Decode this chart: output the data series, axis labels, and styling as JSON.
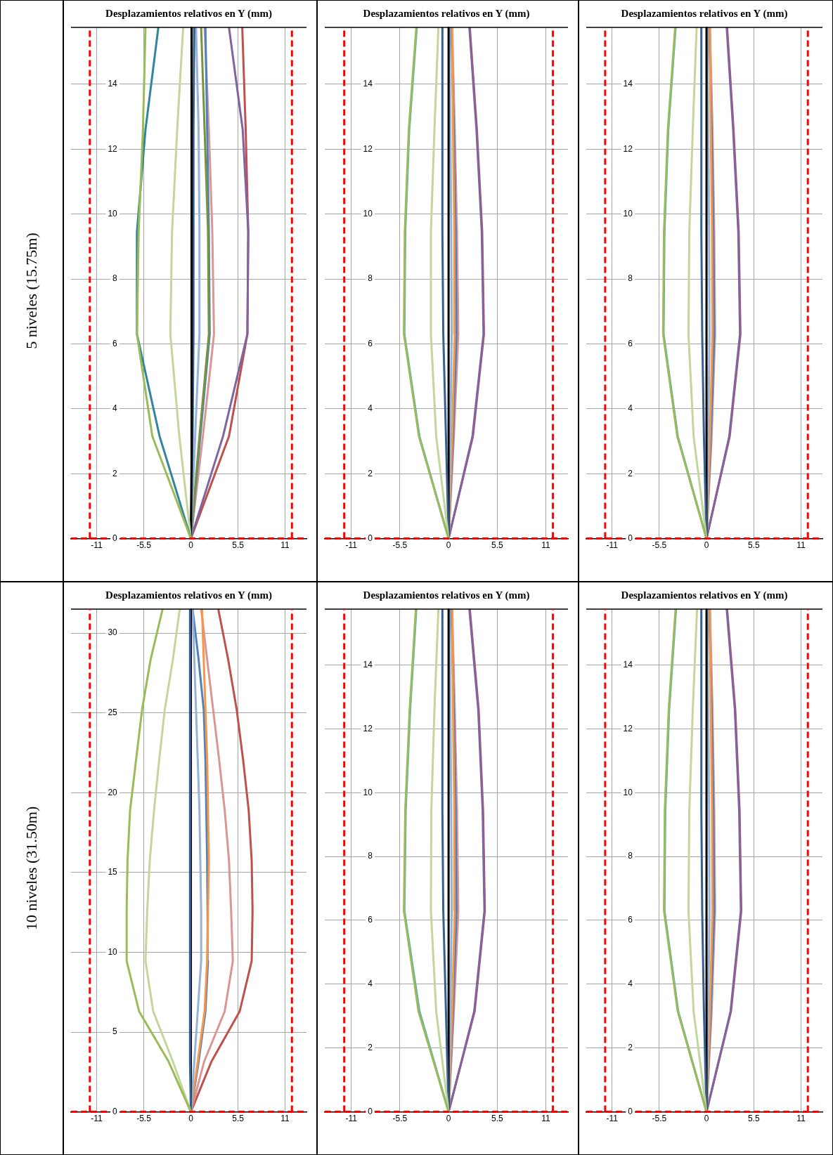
{
  "chart_data": [
    {
      "type": "line",
      "title": "Desplazamientos relativos en Y (mm)",
      "ylabel": "5 niveles (15.75m)",
      "xlim": [
        -14,
        13.5
      ],
      "xticks": [
        -11,
        -5.5,
        0,
        5.5,
        11
      ],
      "ylim": [
        0,
        15.75
      ],
      "yticks": [
        0,
        2,
        4,
        6,
        8,
        10,
        12,
        14
      ],
      "grid": true,
      "marker": "none",
      "series": [
        {
          "color": "#9bbb59",
          "x": [
            0,
            -4.5,
            -6.3,
            -6.1,
            -5.6,
            -5.3
          ],
          "values": [
            0,
            3.15,
            6.3,
            9.45,
            12.6,
            15.75
          ]
        },
        {
          "color": "#31859c",
          "x": [
            0,
            -3.65,
            -6.3,
            -6.3,
            -5.3,
            -3.8
          ],
          "values": [
            0,
            3.15,
            6.3,
            9.45,
            12.6,
            15.75
          ]
        },
        {
          "color": "#c3d69b",
          "x": [
            0,
            -1.35,
            -2.4,
            -2.2,
            -1.6,
            -0.9
          ],
          "values": [
            0,
            3.15,
            6.3,
            9.45,
            12.6,
            15.75
          ]
        },
        {
          "color": "#000000",
          "x": [
            0,
            0.1,
            0.1,
            0.1,
            0.1,
            0.1
          ],
          "values": [
            0,
            3.15,
            6.3,
            9.45,
            12.6,
            15.75
          ]
        },
        {
          "color": "#376092",
          "x": [
            0,
            0.2,
            0.3,
            0.3,
            0.3,
            0.4
          ],
          "values": [
            0,
            3.15,
            6.3,
            9.45,
            12.6,
            15.75
          ]
        },
        {
          "color": "#95b3d7",
          "x": [
            0,
            0.5,
            1.0,
            1.0,
            0.9,
            0.6
          ],
          "values": [
            0,
            3.15,
            6.3,
            9.45,
            12.6,
            15.75
          ]
        },
        {
          "color": "#77933c",
          "x": [
            0,
            1.0,
            2.1,
            2.0,
            1.6,
            1.2
          ],
          "values": [
            0,
            3.15,
            6.3,
            9.45,
            12.6,
            15.75
          ]
        },
        {
          "color": "#4f81bd",
          "x": [
            0,
            1.1,
            2.2,
            2.1,
            1.9,
            1.7
          ],
          "values": [
            0,
            3.15,
            6.3,
            9.45,
            12.6,
            15.75
          ]
        },
        {
          "color": "#d99694",
          "x": [
            0,
            1.4,
            2.7,
            2.5,
            2.1,
            1.6
          ],
          "values": [
            0,
            3.15,
            6.3,
            9.45,
            12.6,
            15.75
          ]
        },
        {
          "color": "#8064a2",
          "x": [
            0,
            3.75,
            6.6,
            6.7,
            6.05,
            4.45
          ],
          "values": [
            0,
            3.15,
            6.3,
            9.45,
            12.6,
            15.75
          ]
        },
        {
          "color": "#c0504d",
          "x": [
            0,
            4.45,
            6.6,
            6.7,
            6.4,
            6.0
          ],
          "values": [
            0,
            3.15,
            6.3,
            9.45,
            12.6,
            15.75
          ]
        }
      ],
      "ref_lines": [
        {
          "axis": "x",
          "value": -11.8,
          "color": "#ff0000",
          "line_style": "dashed"
        },
        {
          "axis": "x",
          "value": 11.8,
          "color": "#ff0000",
          "line_style": "dashed"
        },
        {
          "axis": "y",
          "value": 0,
          "color": "#ff0000",
          "line_style": "dashed"
        }
      ]
    },
    {
      "type": "line",
      "title": "Desplazamientos relativos en Y (mm)",
      "xlim": [
        -14,
        13.5
      ],
      "xticks": [
        -11,
        -5.5,
        0,
        5.5,
        11
      ],
      "ylim": [
        0,
        15.75
      ],
      "yticks": [
        0,
        2,
        4,
        6,
        8,
        10,
        12,
        14
      ],
      "grid": true,
      "marker": "none",
      "series": [
        {
          "color": "#9bbb59",
          "x": [
            0,
            -3.35,
            -5.05,
            -4.95,
            -4.5,
            -3.65
          ],
          "values": [
            0,
            3.15,
            6.3,
            9.45,
            12.6,
            15.75
          ]
        },
        {
          "color": "#4bacc6",
          "x": [
            0,
            -3.3,
            -5.0,
            -4.9,
            -4.45,
            -3.6
          ],
          "values": [
            0,
            3.15,
            6.3,
            9.45,
            12.6,
            15.75
          ]
        },
        {
          "color": "#c3d69b",
          "x": [
            0,
            -1.4,
            -2.0,
            -2.0,
            -1.6,
            -1.15
          ],
          "values": [
            0,
            3.15,
            6.3,
            9.45,
            12.6,
            15.75
          ]
        },
        {
          "color": "#376092",
          "x": [
            0,
            -0.3,
            -0.6,
            -0.7,
            -0.7,
            -0.7
          ],
          "values": [
            0,
            3.15,
            6.3,
            9.45,
            12.6,
            15.75
          ]
        },
        {
          "color": "#000000",
          "x": [
            0,
            0,
            0,
            0,
            0,
            0
          ],
          "values": [
            0,
            3.15,
            6.3,
            9.45,
            12.6,
            15.75
          ]
        },
        {
          "color": "#95b3d7",
          "x": [
            0,
            0.2,
            0.35,
            0.3,
            0.2,
            0.1
          ],
          "values": [
            0,
            3.15,
            6.3,
            9.45,
            12.6,
            15.75
          ]
        },
        {
          "color": "#f79646",
          "x": [
            0,
            0.4,
            0.7,
            0.65,
            0.5,
            0.4
          ],
          "values": [
            0,
            3.15,
            6.3,
            9.45,
            12.6,
            15.75
          ]
        },
        {
          "color": "#4f81bd",
          "x": [
            0,
            0.5,
            0.9,
            0.8,
            0.6,
            0.3
          ],
          "values": [
            0,
            3.15,
            6.3,
            9.45,
            12.6,
            15.75
          ]
        },
        {
          "color": "#d99694",
          "x": [
            0,
            0.6,
            1.1,
            0.95,
            0.7,
            0.4
          ],
          "values": [
            0,
            3.15,
            6.3,
            9.45,
            12.6,
            15.75
          ]
        },
        {
          "color": "#8064a2",
          "x": [
            0,
            2.7,
            3.95,
            3.75,
            3.15,
            2.35
          ],
          "values": [
            0,
            3.15,
            6.3,
            9.45,
            12.6,
            15.75
          ]
        },
        {
          "color": "#c0504d",
          "x": [
            0,
            2.75,
            4.0,
            3.8,
            3.2,
            2.4
          ],
          "values": [
            0,
            3.15,
            6.3,
            9.45,
            12.6,
            15.75
          ]
        }
      ],
      "ref_lines": [
        {
          "axis": "x",
          "value": -11.8,
          "color": "#ff0000",
          "line_style": "dashed"
        },
        {
          "axis": "x",
          "value": 11.8,
          "color": "#ff0000",
          "line_style": "dashed"
        },
        {
          "axis": "y",
          "value": 0,
          "color": "#ff0000",
          "line_style": "dashed"
        }
      ]
    },
    {
      "type": "line",
      "title": "Desplazamientos relativos en Y (mm)",
      "xlim": [
        -14,
        13.5
      ],
      "xticks": [
        -11,
        -5.5,
        0,
        5.5,
        11
      ],
      "ylim": [
        0,
        15.75
      ],
      "yticks": [
        0,
        2,
        4,
        6,
        8,
        10,
        12,
        14
      ],
      "grid": true,
      "marker": "none",
      "series": [
        {
          "color": "#9bbb59",
          "x": [
            0,
            -3.4,
            -5.05,
            -4.95,
            -4.5,
            -3.65
          ],
          "values": [
            0,
            3.15,
            6.3,
            9.45,
            12.6,
            15.75
          ]
        },
        {
          "color": "#4bacc6",
          "x": [
            0,
            -3.35,
            -5.0,
            -4.9,
            -4.45,
            -3.6
          ],
          "values": [
            0,
            3.15,
            6.3,
            9.45,
            12.6,
            15.75
          ]
        },
        {
          "color": "#c3d69b",
          "x": [
            0,
            -1.5,
            -2.1,
            -2.0,
            -1.6,
            -1.15
          ],
          "values": [
            0,
            3.15,
            6.3,
            9.45,
            12.6,
            15.75
          ]
        },
        {
          "color": "#376092",
          "x": [
            0,
            -0.3,
            -0.5,
            -0.6,
            -0.6,
            -0.6
          ],
          "values": [
            0,
            3.15,
            6.3,
            9.45,
            12.6,
            15.75
          ]
        },
        {
          "color": "#000000",
          "x": [
            0,
            0,
            0,
            0,
            0,
            0
          ],
          "values": [
            0,
            3.15,
            6.3,
            9.45,
            12.6,
            15.75
          ]
        },
        {
          "color": "#95b3d7",
          "x": [
            0,
            0.2,
            0.35,
            0.3,
            0.2,
            0.1
          ],
          "values": [
            0,
            3.15,
            6.3,
            9.45,
            12.6,
            15.75
          ]
        },
        {
          "color": "#f79646",
          "x": [
            0,
            0.4,
            0.7,
            0.65,
            0.5,
            0.4
          ],
          "values": [
            0,
            3.15,
            6.3,
            9.45,
            12.6,
            15.75
          ]
        },
        {
          "color": "#4f81bd",
          "x": [
            0,
            0.5,
            0.9,
            0.8,
            0.6,
            0.3
          ],
          "values": [
            0,
            3.15,
            6.3,
            9.45,
            12.6,
            15.75
          ]
        },
        {
          "color": "#d99694",
          "x": [
            0,
            0.6,
            1.0,
            0.9,
            0.7,
            0.4
          ],
          "values": [
            0,
            3.15,
            6.3,
            9.45,
            12.6,
            15.75
          ]
        },
        {
          "color": "#8064a2",
          "x": [
            0,
            2.65,
            3.9,
            3.7,
            3.1,
            2.35
          ],
          "values": [
            0,
            3.15,
            6.3,
            9.45,
            12.6,
            15.75
          ]
        },
        {
          "color": "#c0504d",
          "x": [
            0,
            2.7,
            3.95,
            3.75,
            3.15,
            2.4
          ],
          "values": [
            0,
            3.15,
            6.3,
            9.45,
            12.6,
            15.75
          ]
        }
      ],
      "ref_lines": [
        {
          "axis": "x",
          "value": -11.8,
          "color": "#ff0000",
          "line_style": "dashed"
        },
        {
          "axis": "x",
          "value": 11.8,
          "color": "#ff0000",
          "line_style": "dashed"
        },
        {
          "axis": "y",
          "value": 0,
          "color": "#ff0000",
          "line_style": "dashed"
        }
      ]
    },
    {
      "type": "line",
      "title": "Desplazamientos relativos en Y (mm)",
      "ylabel": "10 niveles (31.50m)",
      "xlim": [
        -14,
        13.5
      ],
      "xticks": [
        -11,
        -5.5,
        0,
        5.5,
        11
      ],
      "ylim": [
        0,
        31.5
      ],
      "yticks": [
        0,
        5,
        10,
        15,
        20,
        25,
        30
      ],
      "grid": true,
      "marker": "none",
      "series": [
        {
          "color": "#9bbb59",
          "x": [
            0,
            -2.6,
            -6.05,
            -7.5,
            -7.5,
            -7.4,
            -7.1,
            -6.4,
            -5.7,
            -4.7,
            -3.3
          ],
          "values": [
            0,
            3.15,
            6.3,
            9.45,
            12.6,
            15.75,
            18.9,
            22.05,
            25.2,
            28.35,
            31.5
          ]
        },
        {
          "color": "#c3d69b",
          "x": [
            0,
            -2.1,
            -4.4,
            -5.3,
            -5.1,
            -4.8,
            -4.3,
            -3.7,
            -3.05,
            -2.1,
            -1.3
          ],
          "values": [
            0,
            3.15,
            6.3,
            9.45,
            12.6,
            15.75,
            18.9,
            22.05,
            25.2,
            28.35,
            31.5
          ]
        },
        {
          "color": "#376092",
          "x": [
            0,
            -0.1,
            -0.1,
            -0.1,
            -0.1,
            -0.1,
            -0.1,
            -0.1,
            -0.1,
            -0.1,
            -0.1
          ],
          "values": [
            0,
            3.15,
            6.3,
            9.45,
            12.6,
            15.75,
            18.9,
            22.05,
            25.2,
            28.35,
            31.5
          ]
        },
        {
          "color": "#000000",
          "x": [
            0,
            0,
            0,
            0,
            0,
            0,
            0,
            0,
            0,
            0,
            0
          ],
          "values": [
            0,
            3.15,
            6.3,
            9.45,
            12.6,
            15.75,
            18.9,
            22.05,
            25.2,
            28.35,
            31.5
          ]
        },
        {
          "color": "#95b3d7",
          "x": [
            0,
            0.4,
            0.8,
            1.2,
            1.2,
            1.1,
            1.0,
            0.8,
            0.6,
            0.4,
            0.2
          ],
          "values": [
            0,
            3.15,
            6.3,
            9.45,
            12.6,
            15.75,
            18.9,
            22.05,
            25.2,
            28.35,
            31.5
          ]
        },
        {
          "color": "#f79646",
          "x": [
            0,
            0.8,
            1.6,
            1.9,
            2.0,
            2.1,
            2.0,
            1.9,
            1.7,
            1.5,
            1.3
          ],
          "values": [
            0,
            3.15,
            6.3,
            9.45,
            12.6,
            15.75,
            18.9,
            22.05,
            25.2,
            28.35,
            31.5
          ]
        },
        {
          "color": "#4f81bd",
          "x": [
            0,
            0.9,
            1.7,
            2.0,
            1.95,
            1.9,
            1.8,
            1.7,
            1.5,
            0.9,
            0.2
          ],
          "values": [
            0,
            3.15,
            6.3,
            9.45,
            12.6,
            15.75,
            18.9,
            22.05,
            25.2,
            28.35,
            31.5
          ]
        },
        {
          "color": "#d99694",
          "x": [
            0,
            1.55,
            3.95,
            4.9,
            4.7,
            4.45,
            3.95,
            3.3,
            2.6,
            1.9,
            1.2
          ],
          "values": [
            0,
            3.15,
            6.3,
            9.45,
            12.6,
            15.75,
            18.9,
            22.05,
            25.2,
            28.35,
            31.5
          ]
        },
        {
          "color": "#c0504d",
          "x": [
            0,
            2.4,
            5.7,
            7.1,
            7.2,
            7.1,
            6.75,
            6.1,
            5.35,
            4.35,
            3.2
          ],
          "values": [
            0,
            3.15,
            6.3,
            9.45,
            12.6,
            15.75,
            18.9,
            22.05,
            25.2,
            28.35,
            31.5
          ]
        }
      ],
      "ref_lines": [
        {
          "axis": "x",
          "value": -11.8,
          "color": "#ff0000",
          "line_style": "dashed"
        },
        {
          "axis": "x",
          "value": 11.8,
          "color": "#ff0000",
          "line_style": "dashed"
        },
        {
          "axis": "y",
          "value": 0,
          "color": "#ff0000",
          "line_style": "dashed"
        }
      ]
    },
    {
      "type": "line",
      "title": "Desplazamientos relativos en Y (mm)",
      "xlim": [
        -14,
        13.5
      ],
      "xticks": [
        -11,
        -5.5,
        0,
        5.5,
        11
      ],
      "ylim": [
        0,
        15.75
      ],
      "yticks": [
        0,
        2,
        4,
        6,
        8,
        10,
        12,
        14
      ],
      "grid": true,
      "marker": "none",
      "series": [
        {
          "color": "#9bbb59",
          "x": [
            0,
            -3.4,
            -5.05,
            -4.9,
            -4.4,
            -3.7
          ],
          "values": [
            0,
            3.15,
            6.3,
            9.45,
            12.6,
            15.75
          ]
        },
        {
          "color": "#4bacc6",
          "x": [
            0,
            -3.3,
            -5.0,
            -4.85,
            -4.35,
            -3.65
          ],
          "values": [
            0,
            3.15,
            6.3,
            9.45,
            12.6,
            15.75
          ]
        },
        {
          "color": "#c3d69b",
          "x": [
            0,
            -1.4,
            -2.0,
            -1.95,
            -1.6,
            -1.15
          ],
          "values": [
            0,
            3.15,
            6.3,
            9.45,
            12.6,
            15.75
          ]
        },
        {
          "color": "#376092",
          "x": [
            0,
            -0.3,
            -0.6,
            -0.7,
            -0.7,
            -0.7
          ],
          "values": [
            0,
            3.15,
            6.3,
            9.45,
            12.6,
            15.75
          ]
        },
        {
          "color": "#000000",
          "x": [
            0,
            0,
            0,
            0,
            0,
            0
          ],
          "values": [
            0,
            3.15,
            6.3,
            9.45,
            12.6,
            15.75
          ]
        },
        {
          "color": "#95b3d7",
          "x": [
            0,
            0.2,
            0.35,
            0.3,
            0.2,
            0.1
          ],
          "values": [
            0,
            3.15,
            6.3,
            9.45,
            12.6,
            15.75
          ]
        },
        {
          "color": "#f79646",
          "x": [
            0,
            0.4,
            0.7,
            0.65,
            0.5,
            0.4
          ],
          "values": [
            0,
            3.15,
            6.3,
            9.45,
            12.6,
            15.75
          ]
        },
        {
          "color": "#4f81bd",
          "x": [
            0,
            0.5,
            0.9,
            0.8,
            0.6,
            0.3
          ],
          "values": [
            0,
            3.15,
            6.3,
            9.45,
            12.6,
            15.75
          ]
        },
        {
          "color": "#d99694",
          "x": [
            0,
            0.6,
            1.1,
            0.95,
            0.7,
            0.4
          ],
          "values": [
            0,
            3.15,
            6.3,
            9.45,
            12.6,
            15.75
          ]
        },
        {
          "color": "#8064a2",
          "x": [
            0,
            2.9,
            4.05,
            3.85,
            3.35,
            2.35
          ],
          "values": [
            0,
            3.15,
            6.3,
            9.45,
            12.6,
            15.75
          ]
        },
        {
          "color": "#c0504d",
          "x": [
            0,
            2.95,
            4.1,
            3.9,
            3.4,
            2.4
          ],
          "values": [
            0,
            3.15,
            6.3,
            9.45,
            12.6,
            15.75
          ]
        }
      ],
      "ref_lines": [
        {
          "axis": "x",
          "value": -11.8,
          "color": "#ff0000",
          "line_style": "dashed"
        },
        {
          "axis": "x",
          "value": 11.8,
          "color": "#ff0000",
          "line_style": "dashed"
        },
        {
          "axis": "y",
          "value": 0,
          "color": "#ff0000",
          "line_style": "dashed"
        }
      ]
    },
    {
      "type": "line",
      "title": "Desplazamientos relativos en Y (mm)",
      "xlim": [
        -14,
        13.5
      ],
      "xticks": [
        -11,
        -5.5,
        0,
        5.5,
        11
      ],
      "ylim": [
        0,
        15.75
      ],
      "yticks": [
        0,
        2,
        4,
        6,
        8,
        10,
        12,
        14
      ],
      "grid": true,
      "marker": "none",
      "series": [
        {
          "color": "#9bbb59",
          "x": [
            0,
            -3.35,
            -4.95,
            -4.85,
            -4.4,
            -3.6
          ],
          "values": [
            0,
            3.15,
            6.3,
            9.45,
            12.6,
            15.75
          ]
        },
        {
          "color": "#4bacc6",
          "x": [
            0,
            -3.3,
            -4.9,
            -4.8,
            -4.35,
            -3.55
          ],
          "values": [
            0,
            3.15,
            6.3,
            9.45,
            12.6,
            15.75
          ]
        },
        {
          "color": "#c3d69b",
          "x": [
            0,
            -1.5,
            -2.1,
            -2.0,
            -1.6,
            -1.1
          ],
          "values": [
            0,
            3.15,
            6.3,
            9.45,
            12.6,
            15.75
          ]
        },
        {
          "color": "#376092",
          "x": [
            0,
            -0.3,
            -0.5,
            -0.6,
            -0.6,
            -0.6
          ],
          "values": [
            0,
            3.15,
            6.3,
            9.45,
            12.6,
            15.75
          ]
        },
        {
          "color": "#000000",
          "x": [
            0,
            0,
            0,
            0,
            0,
            0
          ],
          "values": [
            0,
            3.15,
            6.3,
            9.45,
            12.6,
            15.75
          ]
        },
        {
          "color": "#95b3d7",
          "x": [
            0,
            0.2,
            0.35,
            0.3,
            0.2,
            0.1
          ],
          "values": [
            0,
            3.15,
            6.3,
            9.45,
            12.6,
            15.75
          ]
        },
        {
          "color": "#f79646",
          "x": [
            0,
            0.4,
            0.7,
            0.65,
            0.5,
            0.4
          ],
          "values": [
            0,
            3.15,
            6.3,
            9.45,
            12.6,
            15.75
          ]
        },
        {
          "color": "#4f81bd",
          "x": [
            0,
            0.5,
            0.9,
            0.8,
            0.6,
            0.3
          ],
          "values": [
            0,
            3.15,
            6.3,
            9.45,
            12.6,
            15.75
          ]
        },
        {
          "color": "#d99694",
          "x": [
            0,
            0.6,
            1.0,
            0.9,
            0.7,
            0.4
          ],
          "values": [
            0,
            3.15,
            6.3,
            9.45,
            12.6,
            15.75
          ]
        },
        {
          "color": "#8064a2",
          "x": [
            0,
            2.8,
            4.0,
            3.8,
            3.3,
            2.35
          ],
          "values": [
            0,
            3.15,
            6.3,
            9.45,
            12.6,
            15.75
          ]
        },
        {
          "color": "#c0504d",
          "x": [
            0,
            2.85,
            4.05,
            3.85,
            3.35,
            2.4
          ],
          "values": [
            0,
            3.15,
            6.3,
            9.45,
            12.6,
            15.75
          ]
        }
      ],
      "ref_lines": [
        {
          "axis": "x",
          "value": -11.8,
          "color": "#ff0000",
          "line_style": "dashed"
        },
        {
          "axis": "x",
          "value": 11.8,
          "color": "#ff0000",
          "line_style": "dashed"
        },
        {
          "axis": "y",
          "value": 0,
          "color": "#ff0000",
          "line_style": "dashed"
        }
      ]
    }
  ]
}
